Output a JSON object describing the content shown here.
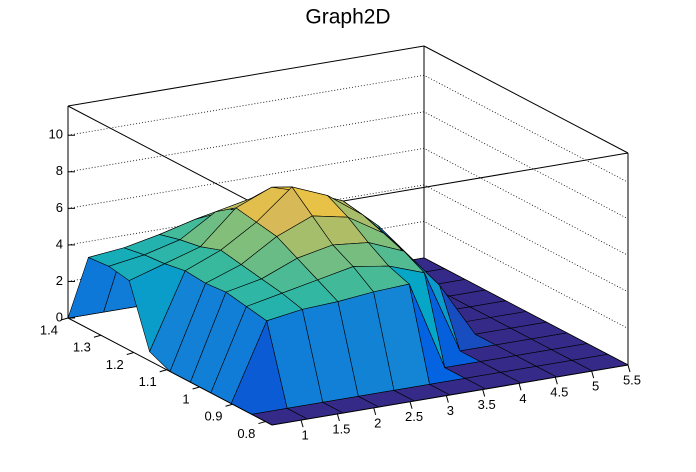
{
  "chart_data": {
    "type": "surface",
    "title": "Graph2D",
    "x": [
      0.6,
      1.09,
      1.58,
      2.07,
      2.56,
      3.05,
      3.54,
      4.03,
      4.52,
      5.01,
      5.5
    ],
    "y": [
      0.78,
      0.842,
      0.904,
      0.966,
      1.028,
      1.09,
      1.152,
      1.214,
      1.276,
      1.338,
      1.4
    ],
    "z": [
      [
        0,
        0,
        0,
        0,
        0,
        0,
        0,
        0,
        0,
        0,
        0
      ],
      [
        0,
        0,
        0,
        0,
        0,
        0,
        0,
        0,
        0,
        0,
        0
      ],
      [
        0,
        4.2,
        4.5,
        4.6,
        4.8,
        4.9,
        0,
        0,
        0,
        0,
        0
      ],
      [
        0,
        4.4,
        4.8,
        5.2,
        5.6,
        5.3,
        4.6,
        0,
        0,
        0,
        0
      ],
      [
        0,
        4.6,
        5.0,
        5.8,
        6.2,
        6.0,
        5.2,
        3.0,
        0,
        0,
        0
      ],
      [
        0,
        4.5,
        5.2,
        6.4,
        7.2,
        6.8,
        5.6,
        3.5,
        0,
        0,
        0
      ],
      [
        0.5,
        4.6,
        5.4,
        6.6,
        8.2,
        7.4,
        6.0,
        4.0,
        0,
        0,
        0
      ],
      [
        3.8,
        4.4,
        5.0,
        6.8,
        7.6,
        7.0,
        6.2,
        4.5,
        0,
        0,
        0
      ],
      [
        4.0,
        4.3,
        4.8,
        6.0,
        6.4,
        6.0,
        5.8,
        4.2,
        0,
        0,
        0
      ],
      [
        3.9,
        4.1,
        4.5,
        5.0,
        5.2,
        5.0,
        4.6,
        3.6,
        0,
        0,
        0
      ],
      [
        0,
        0,
        0,
        0,
        0,
        0,
        0,
        0,
        0,
        0,
        0
      ]
    ],
    "xlim": [
      0.6,
      5.5
    ],
    "ylim": [
      0.78,
      1.4
    ],
    "zlim": [
      0,
      11.6
    ],
    "xticks": [
      1,
      1.5,
      2,
      2.5,
      3,
      3.5,
      4,
      4.5,
      5,
      5.5
    ],
    "yticks": [
      0.8,
      0.9,
      1,
      1.1,
      1.2,
      1.3,
      1.4
    ],
    "zticks": [
      0,
      2,
      4,
      6,
      8,
      10
    ],
    "grid": true
  }
}
